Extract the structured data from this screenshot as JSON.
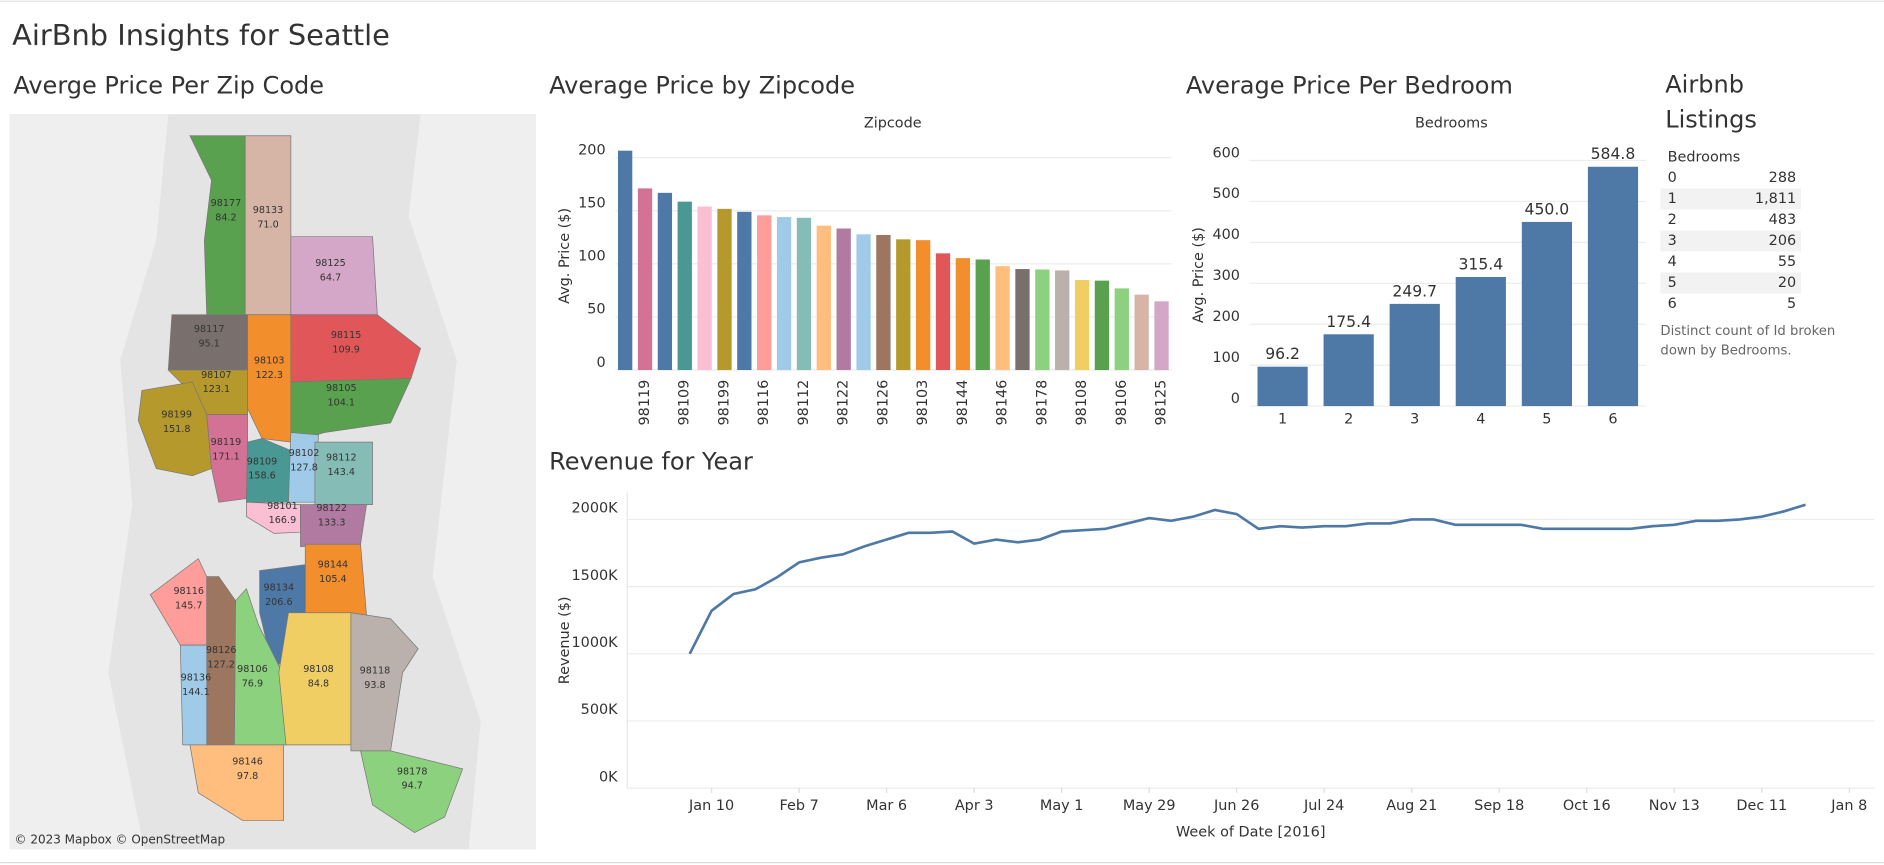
{
  "title": "AirBnb Insights for Seattle",
  "chart_data": [
    {
      "type": "map",
      "title": "Averge Price Per Zip Code",
      "categories": [
        "98177",
        "98133",
        "98125",
        "98117",
        "98103",
        "98115",
        "98107",
        "98105",
        "98199",
        "98119",
        "98109",
        "98102",
        "98112",
        "98101",
        "98122",
        "98144",
        "98116",
        "98134",
        "98126",
        "98136",
        "98106",
        "98108",
        "98118",
        "98146",
        "98178"
      ],
      "values": [
        84.2,
        71.0,
        64.7,
        95.1,
        122.3,
        109.9,
        123.1,
        104.1,
        151.8,
        171.1,
        158.6,
        127.8,
        143.4,
        166.9,
        133.3,
        105.4,
        145.7,
        206.6,
        127.2,
        144.1,
        76.9,
        84.8,
        93.8,
        97.8,
        94.7
      ],
      "value_labels": [
        "84.2",
        "71.0",
        "64.7",
        "95.1",
        "122.3",
        "109.9",
        "123.1",
        "104.1",
        "151.8",
        "171.1",
        "158.6",
        "127.8",
        "143.4",
        "166.9",
        "133.3",
        "105.4",
        "145.7",
        "206.6",
        "127.2",
        "144.1",
        "76.9",
        "84.8",
        "93.8",
        "97.8",
        "94.7"
      ],
      "colors": [
        "#59a14f",
        "#d7b5a6",
        "#d4a6c8",
        "#79706e",
        "#f28e2b",
        "#e15759",
        "#b6992d",
        "#59a14f",
        "#b6992d",
        "#d37295",
        "#499894",
        "#a0cbe8",
        "#86bcb6",
        "#fabfd2",
        "#b07aa1",
        "#f28e2b",
        "#ff9d9a",
        "#4e79a7",
        "#9d7660",
        "#a0cbe8",
        "#8cd17d",
        "#f1ce63",
        "#bab0ac",
        "#ffbe7d",
        "#8cd17d"
      ],
      "attribution": "© 2023 Mapbox © OpenStreetMap"
    },
    {
      "type": "bar",
      "title": "Average Price by Zipcode",
      "x_header": "Zipcode",
      "y_label": "Avg. Price ($)",
      "categories": [
        null,
        "98119",
        null,
        "98109",
        null,
        "98199",
        null,
        "98116",
        null,
        "98112",
        null,
        "98122",
        null,
        "98126",
        null,
        "98103",
        null,
        "98144",
        null,
        "98146",
        null,
        "98178",
        null,
        "98108",
        null,
        "98106",
        null,
        "98125"
      ],
      "values": [
        206.6,
        171.1,
        166.9,
        158.6,
        154,
        151.8,
        149,
        145.7,
        144.1,
        143.4,
        136,
        133.3,
        127.8,
        127.2,
        123.1,
        122.3,
        109.9,
        105.4,
        104.1,
        97.8,
        95.1,
        94.7,
        93.8,
        84.8,
        84.2,
        76.9,
        71.0,
        64.7
      ],
      "colors": [
        "#4e79a7",
        "#d37295",
        "#4e79a7",
        "#499894",
        "#fabfd2",
        "#b6992d",
        "#4e79a7",
        "#ff9d9a",
        "#a0cbe8",
        "#86bcb6",
        "#ffbe7d",
        "#b07aa1",
        "#a0cbe8",
        "#9d7660",
        "#b6992d",
        "#f28e2b",
        "#e15759",
        "#f28e2b",
        "#59a14f",
        "#ffbe7d",
        "#79706e",
        "#8cd17d",
        "#bab0ac",
        "#f1ce63",
        "#59a14f",
        "#8cd17d",
        "#d7b5a6",
        "#d4a6c8"
      ],
      "ylim": [
        0,
        215
      ],
      "yticks": [
        0,
        50,
        100,
        150,
        200
      ],
      "grid": true
    },
    {
      "type": "bar",
      "title": "Average Price Per Bedroom",
      "x_header": "Bedrooms",
      "y_label": "Avg. Price ($)",
      "categories": [
        "1",
        "2",
        "3",
        "4",
        "5",
        "6"
      ],
      "values": [
        96.2,
        175.4,
        249.7,
        315.4,
        450.0,
        584.8
      ],
      "value_labels": [
        "96.2",
        "175.4",
        "249.7",
        "315.4",
        "450.0",
        "584.8"
      ],
      "color": "#4e79a7",
      "ylim": [
        0,
        640
      ],
      "yticks": [
        0,
        100,
        200,
        300,
        400,
        500,
        600
      ],
      "grid": true
    },
    {
      "type": "line",
      "title": "Revenue for Year",
      "x_label": "Week of Date [2016]",
      "y_label": "Revenue ($)",
      "color": "#4e79a7",
      "x": [
        "2016-01-03",
        "2016-01-10",
        "2016-01-17",
        "2016-01-24",
        "2016-01-31",
        "2016-02-07",
        "2016-02-14",
        "2016-02-21",
        "2016-02-28",
        "2016-03-06",
        "2016-03-13",
        "2016-03-20",
        "2016-03-27",
        "2016-04-03",
        "2016-04-10",
        "2016-04-17",
        "2016-04-24",
        "2016-05-01",
        "2016-05-08",
        "2016-05-15",
        "2016-05-22",
        "2016-05-29",
        "2016-06-05",
        "2016-06-12",
        "2016-06-19",
        "2016-06-26",
        "2016-07-03",
        "2016-07-10",
        "2016-07-17",
        "2016-07-24",
        "2016-07-31",
        "2016-08-07",
        "2016-08-14",
        "2016-08-21",
        "2016-08-28",
        "2016-09-04",
        "2016-09-11",
        "2016-09-18",
        "2016-09-25",
        "2016-10-02",
        "2016-10-09",
        "2016-10-16",
        "2016-10-23",
        "2016-10-30",
        "2016-11-06",
        "2016-11-13",
        "2016-11-20",
        "2016-11-27",
        "2016-12-04",
        "2016-12-11",
        "2016-12-18",
        "2016-12-25"
      ],
      "values": [
        1000000,
        1320000,
        1445000,
        1480000,
        1570000,
        1680000,
        1715000,
        1740000,
        1800000,
        1850000,
        1900000,
        1900000,
        1910000,
        1820000,
        1850000,
        1830000,
        1850000,
        1910000,
        1920000,
        1930000,
        1970000,
        2010000,
        1990000,
        2020000,
        2070000,
        2040000,
        1930000,
        1950000,
        1940000,
        1950000,
        1950000,
        1970000,
        1970000,
        2000000,
        2000000,
        1960000,
        1960000,
        1960000,
        1960000,
        1930000,
        1930000,
        1930000,
        1930000,
        1930000,
        1950000,
        1960000,
        1990000,
        1990000,
        2000000,
        2020000,
        2060000,
        2110000
      ],
      "xlim": [
        "2015-12-14",
        "2017-01-16"
      ],
      "xticks": [
        {
          "value": "2016-01-10",
          "label": "Jan 10"
        },
        {
          "value": "2016-02-07",
          "label": "Feb 7"
        },
        {
          "value": "2016-03-06",
          "label": "Mar 6"
        },
        {
          "value": "2016-04-03",
          "label": "Apr 3"
        },
        {
          "value": "2016-05-01",
          "label": "May 1"
        },
        {
          "value": "2016-05-29",
          "label": "May 29"
        },
        {
          "value": "2016-06-26",
          "label": "Jun 26"
        },
        {
          "value": "2016-07-24",
          "label": "Jul 24"
        },
        {
          "value": "2016-08-21",
          "label": "Aug 21"
        },
        {
          "value": "2016-09-18",
          "label": "Sep 18"
        },
        {
          "value": "2016-10-16",
          "label": "Oct 16"
        },
        {
          "value": "2016-11-13",
          "label": "Nov 13"
        },
        {
          "value": "2016-12-11",
          "label": "Dec 11"
        },
        {
          "value": "2017-01-08",
          "label": "Jan 8"
        }
      ],
      "ylim": [
        0,
        2200000
      ],
      "yticks": [
        {
          "value": 0,
          "label": "0K"
        },
        {
          "value": 500000,
          "label": "500K"
        },
        {
          "value": 1000000,
          "label": "1000K"
        },
        {
          "value": 1500000,
          "label": "1500K"
        },
        {
          "value": 2000000,
          "label": "2000K"
        }
      ],
      "grid": true
    }
  ],
  "table": {
    "title": "Airbnb Listings",
    "header": "Bedrooms",
    "rows": [
      [
        "0",
        "288"
      ],
      [
        "1",
        "1,811"
      ],
      [
        "2",
        "483"
      ],
      [
        "3",
        "206"
      ],
      [
        "4",
        "55"
      ],
      [
        "5",
        "20"
      ],
      [
        "6",
        "5"
      ]
    ],
    "note": "Distinct count of Id broken down by Bedrooms."
  }
}
